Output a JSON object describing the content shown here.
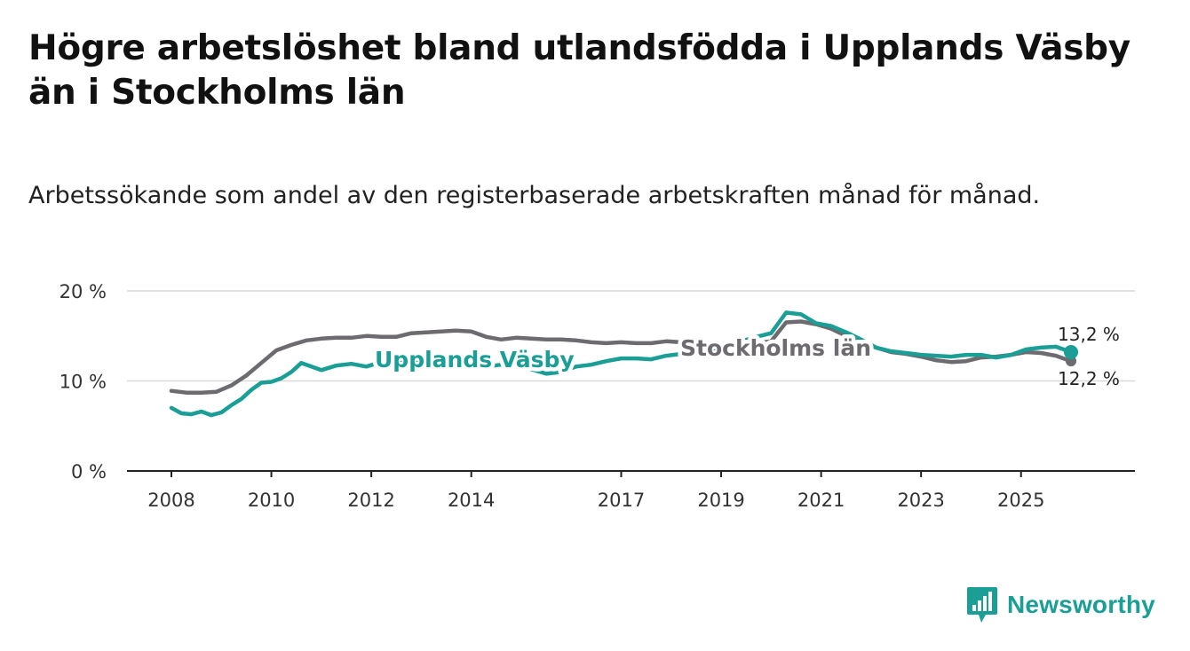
{
  "title": "Högre arbetslöshet bland utlandsfödda i Upplands Väsby än i Stockholms län",
  "subtitle": "Arbetssökande som andel av den registerbaserade arbetskraften månad för månad.",
  "brand": {
    "name": "Newsworthy",
    "icon": "newsworthy-logo-icon",
    "color": "#1a9e96"
  },
  "chart_data": {
    "type": "line",
    "ylim": [
      0,
      20
    ],
    "xlim": [
      2008,
      2026
    ],
    "yticks": [
      {
        "value": 0,
        "label": "0 %"
      },
      {
        "value": 10,
        "label": "10 %"
      },
      {
        "value": 20,
        "label": "20 %"
      }
    ],
    "xticks": [
      {
        "value": 2008,
        "label": "2008"
      },
      {
        "value": 2010,
        "label": "2010"
      },
      {
        "value": 2012,
        "label": "2012"
      },
      {
        "value": 2014,
        "label": "2014"
      },
      {
        "value": 2017,
        "label": "2017"
      },
      {
        "value": 2019,
        "label": "2019"
      },
      {
        "value": 2021,
        "label": "2021"
      },
      {
        "value": 2023,
        "label": "2023"
      },
      {
        "value": 2025,
        "label": "2025"
      }
    ],
    "grid": true,
    "series": [
      {
        "name": "Stockholms län",
        "color": "#6d6b70",
        "end_label": "12,2 %",
        "points": [
          [
            2008.0,
            8.9
          ],
          [
            2008.3,
            8.7
          ],
          [
            2008.6,
            8.7
          ],
          [
            2008.9,
            8.8
          ],
          [
            2009.2,
            9.5
          ],
          [
            2009.5,
            10.6
          ],
          [
            2009.8,
            12.0
          ],
          [
            2010.1,
            13.4
          ],
          [
            2010.4,
            14.0
          ],
          [
            2010.7,
            14.5
          ],
          [
            2011.0,
            14.7
          ],
          [
            2011.3,
            14.8
          ],
          [
            2011.6,
            14.8
          ],
          [
            2011.9,
            15.0
          ],
          [
            2012.2,
            14.9
          ],
          [
            2012.5,
            14.9
          ],
          [
            2012.8,
            15.3
          ],
          [
            2013.1,
            15.4
          ],
          [
            2013.4,
            15.5
          ],
          [
            2013.7,
            15.6
          ],
          [
            2014.0,
            15.5
          ],
          [
            2014.3,
            14.9
          ],
          [
            2014.6,
            14.6
          ],
          [
            2014.9,
            14.8
          ],
          [
            2015.2,
            14.7
          ],
          [
            2015.5,
            14.6
          ],
          [
            2015.8,
            14.6
          ],
          [
            2016.1,
            14.5
          ],
          [
            2016.4,
            14.3
          ],
          [
            2016.7,
            14.2
          ],
          [
            2017.0,
            14.3
          ],
          [
            2017.3,
            14.2
          ],
          [
            2017.6,
            14.2
          ],
          [
            2017.9,
            14.4
          ],
          [
            2018.2,
            14.3
          ],
          [
            2018.5,
            14.0
          ],
          [
            2018.8,
            13.8
          ],
          [
            2019.1,
            13.9
          ],
          [
            2019.4,
            14.0
          ],
          [
            2019.7,
            14.2
          ],
          [
            2020.0,
            14.4
          ],
          [
            2020.3,
            16.5
          ],
          [
            2020.6,
            16.6
          ],
          [
            2020.9,
            16.3
          ],
          [
            2021.2,
            15.8
          ],
          [
            2021.5,
            15.0
          ],
          [
            2021.8,
            14.2
          ],
          [
            2022.1,
            13.7
          ],
          [
            2022.4,
            13.2
          ],
          [
            2022.7,
            13.0
          ],
          [
            2023.0,
            12.7
          ],
          [
            2023.3,
            12.3
          ],
          [
            2023.6,
            12.1
          ],
          [
            2023.9,
            12.2
          ],
          [
            2024.2,
            12.6
          ],
          [
            2024.5,
            12.7
          ],
          [
            2024.8,
            12.9
          ],
          [
            2025.1,
            13.2
          ],
          [
            2025.4,
            13.1
          ],
          [
            2025.7,
            12.8
          ],
          [
            2026.0,
            12.2
          ]
        ]
      },
      {
        "name": "Upplands Väsby",
        "color": "#1a9e96",
        "end_label": "13,2 %",
        "points": [
          [
            2008.0,
            7.0
          ],
          [
            2008.2,
            6.4
          ],
          [
            2008.4,
            6.3
          ],
          [
            2008.6,
            6.6
          ],
          [
            2008.8,
            6.2
          ],
          [
            2009.0,
            6.5
          ],
          [
            2009.2,
            7.3
          ],
          [
            2009.4,
            8.0
          ],
          [
            2009.6,
            9.0
          ],
          [
            2009.8,
            9.8
          ],
          [
            2010.0,
            9.9
          ],
          [
            2010.2,
            10.3
          ],
          [
            2010.4,
            11.0
          ],
          [
            2010.6,
            12.0
          ],
          [
            2010.8,
            11.6
          ],
          [
            2011.0,
            11.2
          ],
          [
            2011.3,
            11.7
          ],
          [
            2011.6,
            11.9
          ],
          [
            2011.9,
            11.6
          ],
          [
            2012.2,
            12.1
          ],
          [
            2012.5,
            12.3
          ],
          [
            2012.8,
            12.4
          ],
          [
            2013.1,
            12.2
          ],
          [
            2013.4,
            12.5
          ],
          [
            2013.7,
            12.0
          ],
          [
            2014.0,
            11.8
          ],
          [
            2014.3,
            11.6
          ],
          [
            2014.6,
            11.8
          ],
          [
            2014.9,
            11.9
          ],
          [
            2015.2,
            11.3
          ],
          [
            2015.5,
            10.8
          ],
          [
            2015.8,
            11.0
          ],
          [
            2016.1,
            11.6
          ],
          [
            2016.4,
            11.8
          ],
          [
            2016.7,
            12.2
          ],
          [
            2017.0,
            12.5
          ],
          [
            2017.3,
            12.5
          ],
          [
            2017.6,
            12.4
          ],
          [
            2017.9,
            12.8
          ],
          [
            2018.2,
            13.0
          ],
          [
            2018.5,
            13.1
          ],
          [
            2018.8,
            13.4
          ],
          [
            2019.1,
            14.0
          ],
          [
            2019.4,
            14.4
          ],
          [
            2019.7,
            14.9
          ],
          [
            2020.0,
            15.3
          ],
          [
            2020.3,
            17.6
          ],
          [
            2020.6,
            17.4
          ],
          [
            2020.9,
            16.4
          ],
          [
            2021.2,
            16.1
          ],
          [
            2021.5,
            15.4
          ],
          [
            2021.8,
            14.6
          ],
          [
            2022.1,
            13.7
          ],
          [
            2022.4,
            13.3
          ],
          [
            2022.7,
            13.1
          ],
          [
            2023.0,
            12.9
          ],
          [
            2023.3,
            12.8
          ],
          [
            2023.6,
            12.7
          ],
          [
            2023.9,
            12.9
          ],
          [
            2024.2,
            12.9
          ],
          [
            2024.5,
            12.6
          ],
          [
            2024.8,
            12.9
          ],
          [
            2025.1,
            13.5
          ],
          [
            2025.4,
            13.7
          ],
          [
            2025.7,
            13.8
          ],
          [
            2026.0,
            13.2
          ]
        ]
      }
    ]
  }
}
